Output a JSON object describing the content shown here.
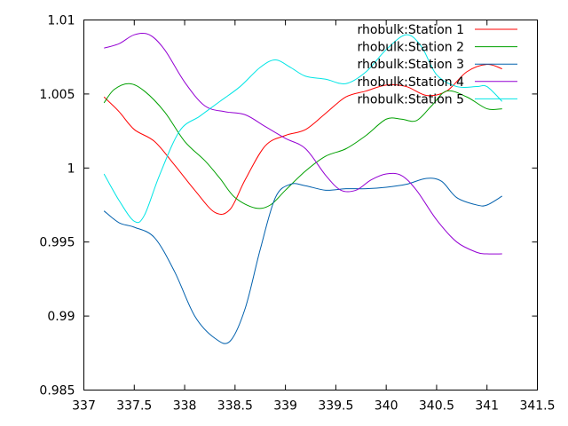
{
  "chart_data": {
    "type": "line",
    "xlim": [
      337,
      341.5
    ],
    "ylim": [
      0.985,
      1.01
    ],
    "xticks": [
      "337",
      "337.5",
      "338",
      "338.5",
      "339",
      "339.5",
      "340",
      "340.5",
      "341",
      "341.5"
    ],
    "yticks": [
      "0.985",
      "0.99",
      "0.995",
      "1",
      "1.005",
      "1.01"
    ],
    "xtick_values": [
      337,
      337.5,
      338,
      338.5,
      339,
      339.5,
      340,
      340.5,
      341,
      341.5
    ],
    "ytick_values": [
      0.985,
      0.99,
      0.995,
      1,
      1.005,
      1.01
    ],
    "grid": false,
    "legend_position": "top-right",
    "series": [
      {
        "name": "rhobulk:Station 1",
        "color": "#ff0000",
        "x": [
          337.2,
          337.35,
          337.5,
          337.7,
          337.9,
          338.1,
          338.3,
          338.45,
          338.6,
          338.8,
          339.0,
          339.2,
          339.4,
          339.6,
          339.8,
          340.0,
          340.2,
          340.4,
          340.6,
          340.8,
          341.0,
          341.15
        ],
        "y": [
          1.0048,
          1.0038,
          1.0026,
          1.0018,
          1.0002,
          0.9985,
          0.997,
          0.9972,
          0.9992,
          1.0015,
          1.0022,
          1.0026,
          1.0037,
          1.0048,
          1.0052,
          1.0056,
          1.0055,
          1.0049,
          1.0052,
          1.0065,
          1.007,
          1.0067
        ]
      },
      {
        "name": "rhobulk:Station 2",
        "color": "#00a000",
        "x": [
          337.2,
          337.3,
          337.45,
          337.6,
          337.8,
          338.0,
          338.2,
          338.35,
          338.5,
          338.7,
          338.85,
          339.0,
          339.2,
          339.4,
          339.6,
          339.8,
          340.0,
          340.15,
          340.3,
          340.45,
          340.6,
          340.8,
          341.0,
          341.15
        ],
        "y": [
          1.0044,
          1.0053,
          1.0057,
          1.0052,
          1.0038,
          1.0018,
          1.0005,
          0.9993,
          0.998,
          0.9973,
          0.9975,
          0.9985,
          0.9998,
          1.0008,
          1.0013,
          1.0022,
          1.0033,
          1.0033,
          1.0032,
          1.0042,
          1.0052,
          1.0048,
          1.004,
          1.004
        ]
      },
      {
        "name": "rhobulk:Station 3",
        "color": "#0060ad",
        "x": [
          337.2,
          337.35,
          337.5,
          337.7,
          337.9,
          338.1,
          338.3,
          338.45,
          338.6,
          338.75,
          338.9,
          339.05,
          339.2,
          339.4,
          339.6,
          339.8,
          340.0,
          340.2,
          340.4,
          340.55,
          340.7,
          340.9,
          341.0,
          341.15
        ],
        "y": [
          0.9971,
          0.9963,
          0.996,
          0.9953,
          0.993,
          0.99,
          0.9885,
          0.9883,
          0.9905,
          0.9945,
          0.998,
          0.9989,
          0.9988,
          0.9985,
          0.9986,
          0.9986,
          0.9987,
          0.9989,
          0.9993,
          0.9991,
          0.998,
          0.9975,
          0.9975,
          0.9981
        ]
      },
      {
        "name": "rhobulk:Station 4",
        "color": "#9400d3",
        "x": [
          337.2,
          337.35,
          337.5,
          337.65,
          337.8,
          338.0,
          338.2,
          338.4,
          338.6,
          338.8,
          339.0,
          339.2,
          339.4,
          339.55,
          339.7,
          339.85,
          340.0,
          340.15,
          340.3,
          340.5,
          340.7,
          340.9,
          341.0,
          341.15
        ],
        "y": [
          1.0081,
          1.0084,
          1.009,
          1.009,
          1.008,
          1.0058,
          1.0042,
          1.0038,
          1.0036,
          1.0028,
          1.002,
          1.0013,
          0.9995,
          0.9985,
          0.9985,
          0.9992,
          0.9996,
          0.9995,
          0.9985,
          0.9965,
          0.995,
          0.9943,
          0.9942,
          0.9942
        ]
      },
      {
        "name": "rhobulk:Station 5",
        "color": "#00e5e5",
        "x": [
          337.2,
          337.35,
          337.5,
          337.6,
          337.75,
          337.95,
          338.15,
          338.35,
          338.55,
          338.75,
          338.9,
          339.05,
          339.2,
          339.4,
          339.6,
          339.8,
          340.0,
          340.2,
          340.35,
          340.5,
          340.7,
          340.9,
          341.0,
          341.15
        ],
        "y": [
          0.9996,
          0.9978,
          0.9964,
          0.9968,
          0.9995,
          1.0025,
          1.0035,
          1.0045,
          1.0055,
          1.0068,
          1.0073,
          1.0068,
          1.0062,
          1.006,
          1.0057,
          1.0065,
          1.008,
          1.009,
          1.0082,
          1.0063,
          1.0055,
          1.0055,
          1.0055,
          1.0045
        ]
      }
    ]
  }
}
